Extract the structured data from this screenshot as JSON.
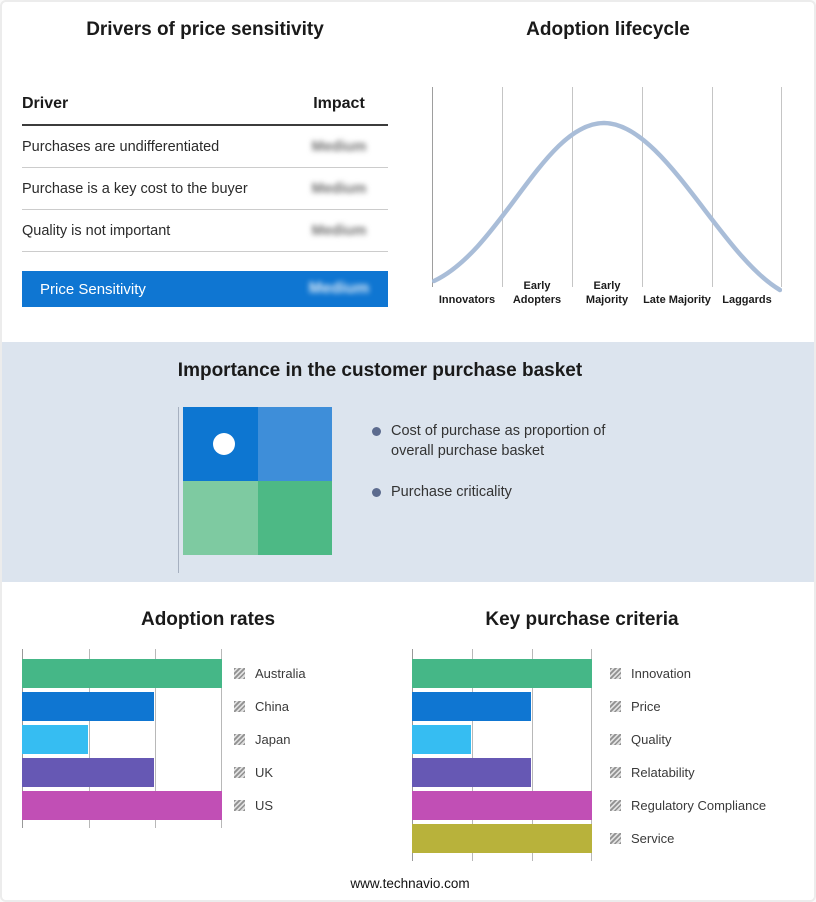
{
  "colors": {
    "accent_blue": "#0f76d2",
    "band_background": "#dce4ee",
    "curve_line": "#a9bdd8",
    "green": "#45b787",
    "blue": "#0f76d2",
    "cyan": "#36bdf2",
    "purple": "#6658b4",
    "magenta": "#c14fb5",
    "olive": "#b8b23b"
  },
  "drivers_panel": {
    "title": "Drivers of price sensitivity",
    "columns": {
      "driver": "Driver",
      "impact": "Impact"
    },
    "rows": [
      {
        "driver": "Purchases are undifferentiated",
        "impact": "Medium"
      },
      {
        "driver": "Purchase is a key cost to the buyer",
        "impact": "Medium"
      },
      {
        "driver": "Quality is not important",
        "impact": "Medium"
      }
    ],
    "summary": {
      "label": "Price Sensitivity",
      "impact": "Medium"
    }
  },
  "lifecycle_panel": {
    "title": "Adoption lifecycle",
    "stages": [
      "Innovators",
      "Early Adopters",
      "Early Majority",
      "Late Majority",
      "Laggards"
    ]
  },
  "basket_panel": {
    "title": "Importance in the customer purchase basket",
    "bullets": [
      "Cost of purchase as proportion of overall purchase basket",
      "Purchase criticality"
    ]
  },
  "footer": "www.technavio.com",
  "chart_data": [
    {
      "type": "line",
      "title": "Adoption lifecycle",
      "x": [
        "Innovators",
        "Early Adopters",
        "Early Majority",
        "Late Majority",
        "Laggards"
      ],
      "shape": "bell curve rising from Innovators, peaking at Early Majority, falling to Laggards",
      "grid": "vertical stage separator lines",
      "legend_position": "none"
    },
    {
      "type": "bar",
      "title": "Adoption rates",
      "orientation": "horizontal",
      "categories": [
        "Australia",
        "China",
        "Japan",
        "UK",
        "US"
      ],
      "values": [
        100,
        66,
        33,
        66,
        100
      ],
      "colors": [
        "#45b787",
        "#0f76d2",
        "#36bdf2",
        "#6658b4",
        "#c14fb5"
      ],
      "xlim": [
        0,
        100
      ],
      "grid": "vertical lines at thirds",
      "legend_position": "right"
    },
    {
      "type": "bar",
      "title": "Key purchase criteria",
      "orientation": "horizontal",
      "categories": [
        "Innovation",
        "Price",
        "Quality",
        "Relatability",
        "Regulatory Compliance",
        "Service"
      ],
      "values": [
        100,
        66,
        33,
        66,
        100,
        100
      ],
      "colors": [
        "#45b787",
        "#0f76d2",
        "#36bdf2",
        "#6658b4",
        "#c14fb5",
        "#b8b23b"
      ],
      "xlim": [
        0,
        100
      ],
      "grid": "vertical lines at thirds",
      "legend_position": "right"
    }
  ]
}
